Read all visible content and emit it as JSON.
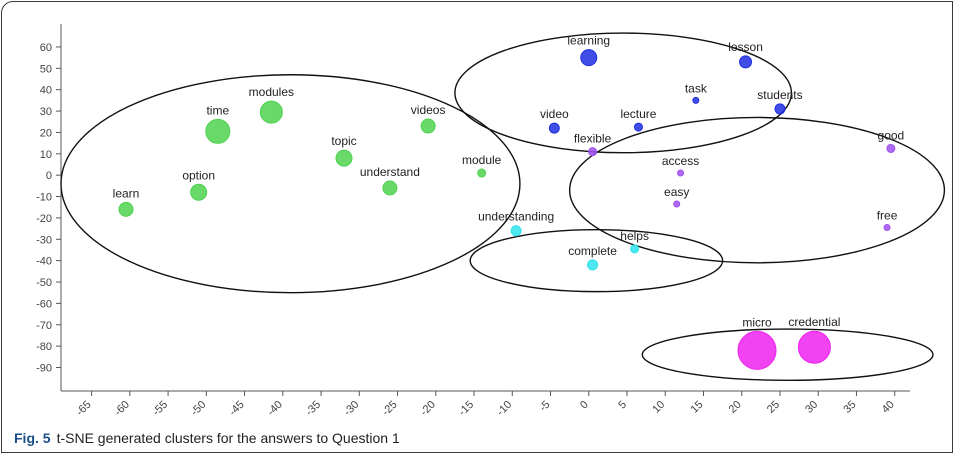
{
  "caption": {
    "label": "Fig. 5",
    "text": "t-SNE generated clusters for the answers to Question 1"
  },
  "colors": {
    "blue": "#1f2fe0",
    "purple": "#a050ee",
    "green": "#4fd24f",
    "cyan": "#2ee3ec",
    "magenta": "#ee22ee",
    "ellipse": "#111111",
    "axis": "#555555"
  },
  "chart_data": {
    "type": "scatter",
    "title": "",
    "xlabel": "",
    "ylabel": "",
    "xlim": [
      -69,
      42
    ],
    "ylim": [
      -101,
      67
    ],
    "xticks": [
      -65,
      -60,
      -55,
      -50,
      -45,
      -40,
      -35,
      -30,
      -25,
      -20,
      -15,
      -10,
      -5,
      0,
      5,
      10,
      15,
      20,
      25,
      30,
      35,
      40
    ],
    "yticks": [
      60,
      50,
      40,
      30,
      20,
      10,
      0,
      -10,
      -20,
      -30,
      -40,
      -50,
      -60,
      -70,
      -80,
      -90
    ],
    "grid": false,
    "legend": "none",
    "points": [
      {
        "label": "learning",
        "x": 0,
        "y": 55,
        "size": 8,
        "color": "blue"
      },
      {
        "label": "lesson",
        "x": 20.5,
        "y": 53,
        "size": 6,
        "color": "blue"
      },
      {
        "label": "task",
        "x": 14,
        "y": 35,
        "size": 3,
        "color": "blue"
      },
      {
        "label": "students",
        "x": 25,
        "y": 31,
        "size": 5,
        "color": "blue"
      },
      {
        "label": "video",
        "x": -4.5,
        "y": 22,
        "size": 5,
        "color": "blue"
      },
      {
        "label": "lecture",
        "x": 6.5,
        "y": 22.5,
        "size": 4,
        "color": "blue"
      },
      {
        "label": "flexible",
        "x": 0.5,
        "y": 11,
        "size": 4,
        "color": "purple"
      },
      {
        "label": "good",
        "x": 39.5,
        "y": 12.5,
        "size": 4,
        "color": "purple"
      },
      {
        "label": "access",
        "x": 12,
        "y": 1,
        "size": 3,
        "color": "purple"
      },
      {
        "label": "easy",
        "x": 11.5,
        "y": -13.5,
        "size": 3,
        "color": "purple"
      },
      {
        "label": "free",
        "x": 39,
        "y": -24.5,
        "size": 3,
        "color": "purple"
      },
      {
        "label": "time",
        "x": -48.5,
        "y": 20.5,
        "size": 12,
        "color": "green"
      },
      {
        "label": "modules",
        "x": -41.5,
        "y": 29.5,
        "size": 11,
        "color": "green"
      },
      {
        "label": "videos",
        "x": -21,
        "y": 23,
        "size": 7,
        "color": "green"
      },
      {
        "label": "topic",
        "x": -32,
        "y": 8,
        "size": 8,
        "color": "green"
      },
      {
        "label": "module",
        "x": -14,
        "y": 1,
        "size": 4,
        "color": "green"
      },
      {
        "label": "understand",
        "x": -26,
        "y": -6,
        "size": 7,
        "color": "green"
      },
      {
        "label": "option",
        "x": -51,
        "y": -8,
        "size": 8,
        "color": "green"
      },
      {
        "label": "learn",
        "x": -60.5,
        "y": -16,
        "size": 7,
        "color": "green"
      },
      {
        "label": "understanding",
        "x": -9.5,
        "y": -26,
        "size": 5,
        "color": "cyan"
      },
      {
        "label": "helps",
        "x": 6,
        "y": -34.5,
        "size": 4,
        "color": "cyan"
      },
      {
        "label": "complete",
        "x": 0.5,
        "y": -42,
        "size": 5,
        "color": "cyan"
      },
      {
        "label": "micro",
        "x": 22,
        "y": -82,
        "size": 19,
        "color": "magenta"
      },
      {
        "label": "credential",
        "x": 29.5,
        "y": -80.5,
        "size": 16,
        "color": "magenta"
      }
    ],
    "clusters": [
      {
        "cx": -39,
        "cy": -4,
        "rx": 30,
        "ry": 51
      },
      {
        "cx": 4.5,
        "cy": 38.5,
        "rx": 22,
        "ry": 28
      },
      {
        "cx": 22,
        "cy": -7,
        "rx": 24.5,
        "ry": 34
      },
      {
        "cx": 1,
        "cy": -40,
        "rx": 16.5,
        "ry": 14.5
      },
      {
        "cx": 26,
        "cy": -84,
        "rx": 19,
        "ry": 12
      }
    ]
  }
}
